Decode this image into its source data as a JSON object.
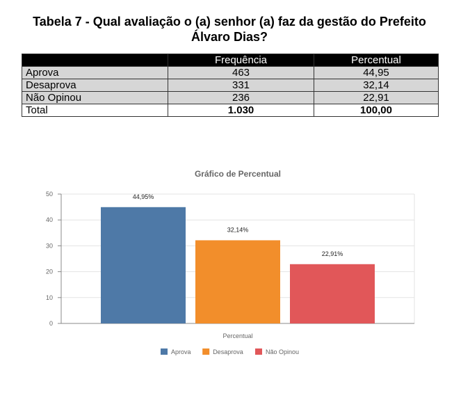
{
  "title_line1": "Tabela 7 - Qual avaliação o (a) senhor (a) faz da gestão do Prefeito",
  "title_line2": "Álvaro Dias?",
  "table": {
    "headers": [
      "",
      "Frequência",
      "Percentual"
    ],
    "rows": [
      {
        "label": "Aprova",
        "freq": "463",
        "pct": "44,95"
      },
      {
        "label": "Desaprova",
        "freq": "331",
        "pct": "32,14"
      },
      {
        "label": "Não Opinou",
        "freq": "236",
        "pct": "22,91"
      }
    ],
    "total": {
      "label": "Total",
      "freq": "1.030",
      "pct": "100,00"
    }
  },
  "chart_data": {
    "type": "bar",
    "title": "Gráfico de Percentual",
    "xlabel": "Percentual",
    "ylabel": "",
    "ylim": [
      0,
      50
    ],
    "yticks": [
      0,
      10,
      20,
      30,
      40,
      50
    ],
    "grid": true,
    "legend_position": "bottom",
    "series": [
      {
        "name": "Aprova",
        "value": 44.95,
        "label": "44,95%",
        "color": "#4e79a7"
      },
      {
        "name": "Desaprova",
        "value": 32.14,
        "label": "32,14%",
        "color": "#f28e2b"
      },
      {
        "name": "Não Opinou",
        "value": 22.91,
        "label": "22,91%",
        "color": "#e15759"
      }
    ]
  }
}
